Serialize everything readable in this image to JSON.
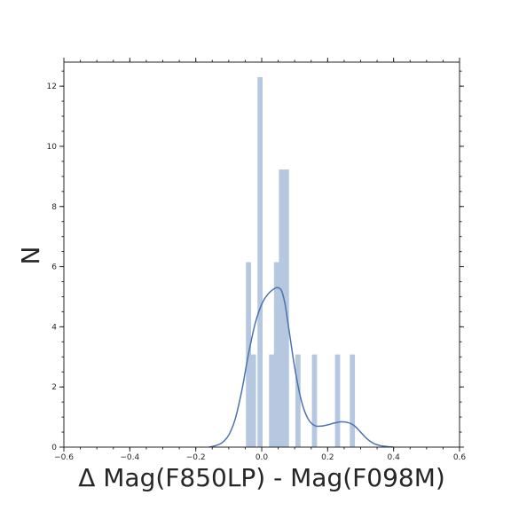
{
  "chart_data": {
    "type": "bar",
    "title": "",
    "xlabel": "Δ Mag(F850LP) - Mag(F098M)",
    "ylabel": "N",
    "xlim": [
      -0.6,
      0.6
    ],
    "ylim": [
      0,
      12.8
    ],
    "grid": false,
    "xticks": [
      -0.6,
      -0.4,
      -0.2,
      0.0,
      0.2,
      0.4,
      0.6
    ],
    "xtick_labels": [
      "−0.6",
      "−0.4",
      "−0.2",
      "0.0",
      "0.2",
      "0.4",
      "0.6"
    ],
    "yticks": [
      0,
      2,
      4,
      6,
      8,
      10,
      12
    ],
    "ytick_labels": [
      "0",
      "2",
      "4",
      "6",
      "8",
      "10",
      "12"
    ],
    "histogram": {
      "color": "#b6c7e0",
      "bin_width": 0.0155,
      "bins": [
        {
          "x": -0.04,
          "value": 6.15
        },
        {
          "x": -0.025,
          "value": 3.08
        },
        {
          "x": -0.005,
          "value": 12.3
        },
        {
          "x": 0.03,
          "value": 3.08
        },
        {
          "x": 0.045,
          "value": 6.15
        },
        {
          "x": 0.06,
          "value": 9.23
        },
        {
          "x": 0.075,
          "value": 9.23
        },
        {
          "x": 0.11,
          "value": 3.08
        },
        {
          "x": 0.16,
          "value": 3.08
        },
        {
          "x": 0.23,
          "value": 3.08
        },
        {
          "x": 0.275,
          "value": 3.08
        }
      ]
    },
    "kde": {
      "color": "#4c72b0",
      "x": [
        -0.16,
        -0.14,
        -0.12,
        -0.1,
        -0.08,
        -0.06,
        -0.04,
        -0.02,
        0.0,
        0.02,
        0.04,
        0.05,
        0.06,
        0.07,
        0.08,
        0.1,
        0.12,
        0.14,
        0.16,
        0.18,
        0.2,
        0.22,
        0.24,
        0.26,
        0.28,
        0.3,
        0.32,
        0.34,
        0.36,
        0.38,
        0.4
      ],
      "y": [
        0.0,
        0.05,
        0.15,
        0.4,
        0.95,
        1.9,
        3.1,
        4.1,
        4.75,
        5.1,
        5.28,
        5.3,
        5.2,
        4.8,
        4.1,
        2.65,
        1.55,
        0.95,
        0.72,
        0.7,
        0.74,
        0.8,
        0.84,
        0.82,
        0.72,
        0.5,
        0.27,
        0.12,
        0.05,
        0.02,
        0.0
      ]
    }
  }
}
